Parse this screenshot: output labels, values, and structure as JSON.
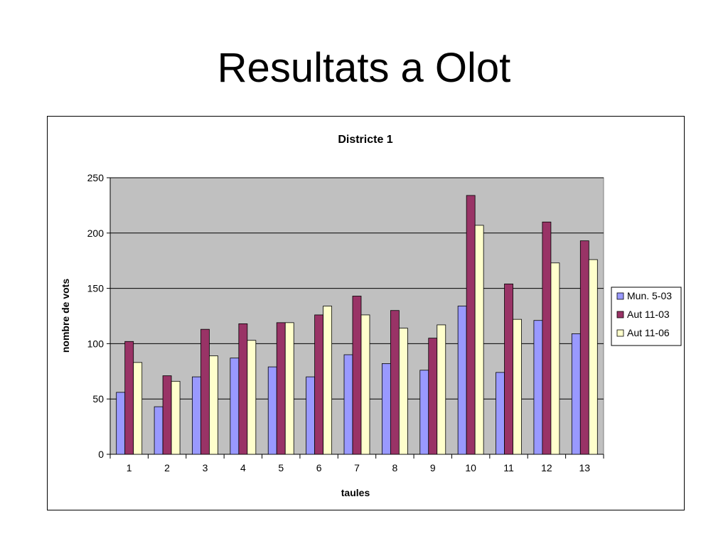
{
  "slide": {
    "title": "Resultats a Olot"
  },
  "chart_data": {
    "type": "bar",
    "title": "Districte 1",
    "xlabel": "taules",
    "ylabel": "nombre de vots",
    "categories": [
      "1",
      "2",
      "3",
      "4",
      "5",
      "6",
      "7",
      "8",
      "9",
      "10",
      "11",
      "12",
      "13"
    ],
    "ylim": [
      0,
      250
    ],
    "yticks": [
      0,
      50,
      100,
      150,
      200,
      250
    ],
    "grid": true,
    "legend": "right",
    "series": [
      {
        "name": "Mun. 5-03",
        "color": "#9999ff",
        "values": [
          56,
          43,
          70,
          87,
          79,
          70,
          90,
          82,
          76,
          134,
          74,
          121,
          109
        ]
      },
      {
        "name": "Aut 11-03",
        "color": "#993366",
        "values": [
          102,
          71,
          113,
          118,
          119,
          126,
          143,
          130,
          105,
          234,
          154,
          210,
          193
        ]
      },
      {
        "name": "Aut 11-06",
        "color": "#ffffcc",
        "values": [
          83,
          66,
          89,
          103,
          119,
          134,
          126,
          114,
          117,
          207,
          122,
          173,
          176
        ]
      }
    ],
    "plot_background": "#c0c0c0"
  }
}
